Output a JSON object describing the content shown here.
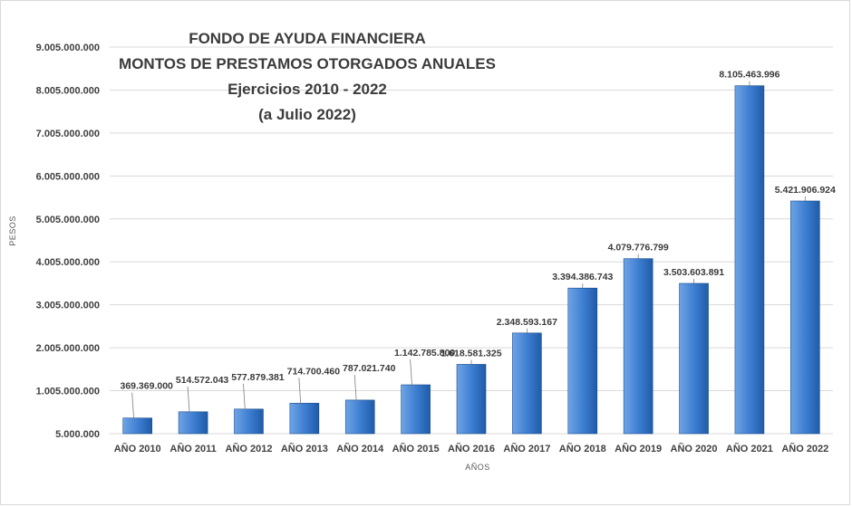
{
  "chart_data": {
    "type": "bar",
    "title": [
      "FONDO DE AYUDA FINANCIERA",
      "MONTOS DE PRESTAMOS OTORGADOS ANUALES",
      "Ejercicios 2010 - 2022",
      "(a Julio 2022)"
    ],
    "xlabel": "AÑOS",
    "ylabel": "PESOS",
    "categories": [
      "AÑO 2010",
      "AÑO 2011",
      "AÑO 2012",
      "AÑO 2013",
      "AÑO 2014",
      "AÑO 2015",
      "AÑO 2016",
      "AÑO 2017",
      "AÑO 2018",
      "AÑO 2019",
      "AÑO 2020",
      "AÑO 2021",
      "AÑO 2022"
    ],
    "values": [
      369369000,
      514572043,
      577879381,
      714700460,
      787021740,
      1142785800,
      1618581325,
      2348593167,
      3394386743,
      4079776799,
      3503603891,
      8105463996,
      5421906924
    ],
    "value_labels": [
      "369.369.000",
      "514.572.043",
      "577.879.381",
      "714.700.460",
      "787.021.740",
      "1.142.785.800",
      "1.618.581.325",
      "2.348.593.167",
      "3.394.386.743",
      "4.079.776.799",
      "3.503.603.891",
      "8.105.463.996",
      "5.421.906.924"
    ],
    "y_ticks": [
      5000000,
      1005000000,
      2005000000,
      3005000000,
      4005000000,
      5005000000,
      6005000000,
      7005000000,
      8005000000,
      9005000000
    ],
    "y_tick_labels": [
      "5.000.000",
      "1.005.000.000",
      "2.005.000.000",
      "3.005.000.000",
      "4.005.000.000",
      "5.005.000.000",
      "6.005.000.000",
      "7.005.000.000",
      "8.005.000.000",
      "9.005.000.000"
    ],
    "ylim": [
      5000000,
      9005000000
    ],
    "grid": true,
    "legend": "none",
    "colors": {
      "bar_light": "#6fa4e4",
      "bar_mid": "#3f7fd2",
      "bar_dark": "#1f5ba8",
      "bar_edge": "#1a4c8e",
      "grid": "#d9d9d9"
    }
  }
}
